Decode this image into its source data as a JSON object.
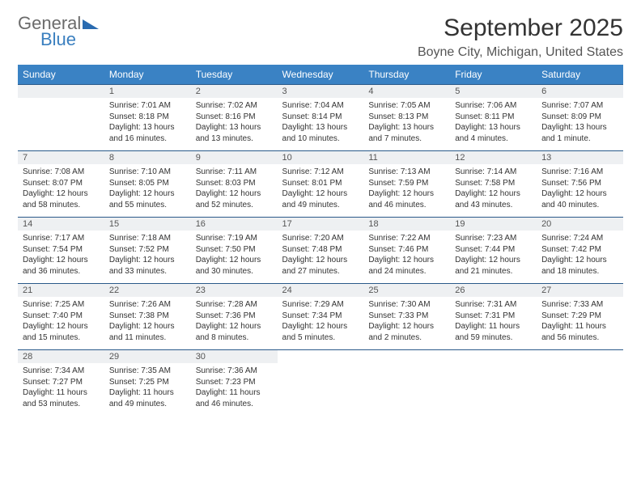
{
  "logo": {
    "text1": "General",
    "text2": "Blue"
  },
  "header": {
    "month_title": "September 2025",
    "location": "Boyne City, Michigan, United States"
  },
  "style": {
    "header_bg": "#3a82c4",
    "header_text": "#ffffff",
    "daynum_bg": "#eef0f2",
    "row_border": "#2a5a8a",
    "body_bg": "#ffffff",
    "body_text": "#333333",
    "title_fontsize": 30,
    "location_fontsize": 16,
    "cell_fontsize": 10,
    "daynum_fontsize": 11
  },
  "days_of_week": [
    "Sunday",
    "Monday",
    "Tuesday",
    "Wednesday",
    "Thursday",
    "Friday",
    "Saturday"
  ],
  "weeks": [
    [
      null,
      {
        "n": "1",
        "sr": "Sunrise: 7:01 AM",
        "ss": "Sunset: 8:18 PM",
        "dl": "Daylight: 13 hours and 16 minutes."
      },
      {
        "n": "2",
        "sr": "Sunrise: 7:02 AM",
        "ss": "Sunset: 8:16 PM",
        "dl": "Daylight: 13 hours and 13 minutes."
      },
      {
        "n": "3",
        "sr": "Sunrise: 7:04 AM",
        "ss": "Sunset: 8:14 PM",
        "dl": "Daylight: 13 hours and 10 minutes."
      },
      {
        "n": "4",
        "sr": "Sunrise: 7:05 AM",
        "ss": "Sunset: 8:13 PM",
        "dl": "Daylight: 13 hours and 7 minutes."
      },
      {
        "n": "5",
        "sr": "Sunrise: 7:06 AM",
        "ss": "Sunset: 8:11 PM",
        "dl": "Daylight: 13 hours and 4 minutes."
      },
      {
        "n": "6",
        "sr": "Sunrise: 7:07 AM",
        "ss": "Sunset: 8:09 PM",
        "dl": "Daylight: 13 hours and 1 minute."
      }
    ],
    [
      {
        "n": "7",
        "sr": "Sunrise: 7:08 AM",
        "ss": "Sunset: 8:07 PM",
        "dl": "Daylight: 12 hours and 58 minutes."
      },
      {
        "n": "8",
        "sr": "Sunrise: 7:10 AM",
        "ss": "Sunset: 8:05 PM",
        "dl": "Daylight: 12 hours and 55 minutes."
      },
      {
        "n": "9",
        "sr": "Sunrise: 7:11 AM",
        "ss": "Sunset: 8:03 PM",
        "dl": "Daylight: 12 hours and 52 minutes."
      },
      {
        "n": "10",
        "sr": "Sunrise: 7:12 AM",
        "ss": "Sunset: 8:01 PM",
        "dl": "Daylight: 12 hours and 49 minutes."
      },
      {
        "n": "11",
        "sr": "Sunrise: 7:13 AM",
        "ss": "Sunset: 7:59 PM",
        "dl": "Daylight: 12 hours and 46 minutes."
      },
      {
        "n": "12",
        "sr": "Sunrise: 7:14 AM",
        "ss": "Sunset: 7:58 PM",
        "dl": "Daylight: 12 hours and 43 minutes."
      },
      {
        "n": "13",
        "sr": "Sunrise: 7:16 AM",
        "ss": "Sunset: 7:56 PM",
        "dl": "Daylight: 12 hours and 40 minutes."
      }
    ],
    [
      {
        "n": "14",
        "sr": "Sunrise: 7:17 AM",
        "ss": "Sunset: 7:54 PM",
        "dl": "Daylight: 12 hours and 36 minutes."
      },
      {
        "n": "15",
        "sr": "Sunrise: 7:18 AM",
        "ss": "Sunset: 7:52 PM",
        "dl": "Daylight: 12 hours and 33 minutes."
      },
      {
        "n": "16",
        "sr": "Sunrise: 7:19 AM",
        "ss": "Sunset: 7:50 PM",
        "dl": "Daylight: 12 hours and 30 minutes."
      },
      {
        "n": "17",
        "sr": "Sunrise: 7:20 AM",
        "ss": "Sunset: 7:48 PM",
        "dl": "Daylight: 12 hours and 27 minutes."
      },
      {
        "n": "18",
        "sr": "Sunrise: 7:22 AM",
        "ss": "Sunset: 7:46 PM",
        "dl": "Daylight: 12 hours and 24 minutes."
      },
      {
        "n": "19",
        "sr": "Sunrise: 7:23 AM",
        "ss": "Sunset: 7:44 PM",
        "dl": "Daylight: 12 hours and 21 minutes."
      },
      {
        "n": "20",
        "sr": "Sunrise: 7:24 AM",
        "ss": "Sunset: 7:42 PM",
        "dl": "Daylight: 12 hours and 18 minutes."
      }
    ],
    [
      {
        "n": "21",
        "sr": "Sunrise: 7:25 AM",
        "ss": "Sunset: 7:40 PM",
        "dl": "Daylight: 12 hours and 15 minutes."
      },
      {
        "n": "22",
        "sr": "Sunrise: 7:26 AM",
        "ss": "Sunset: 7:38 PM",
        "dl": "Daylight: 12 hours and 11 minutes."
      },
      {
        "n": "23",
        "sr": "Sunrise: 7:28 AM",
        "ss": "Sunset: 7:36 PM",
        "dl": "Daylight: 12 hours and 8 minutes."
      },
      {
        "n": "24",
        "sr": "Sunrise: 7:29 AM",
        "ss": "Sunset: 7:34 PM",
        "dl": "Daylight: 12 hours and 5 minutes."
      },
      {
        "n": "25",
        "sr": "Sunrise: 7:30 AM",
        "ss": "Sunset: 7:33 PM",
        "dl": "Daylight: 12 hours and 2 minutes."
      },
      {
        "n": "26",
        "sr": "Sunrise: 7:31 AM",
        "ss": "Sunset: 7:31 PM",
        "dl": "Daylight: 11 hours and 59 minutes."
      },
      {
        "n": "27",
        "sr": "Sunrise: 7:33 AM",
        "ss": "Sunset: 7:29 PM",
        "dl": "Daylight: 11 hours and 56 minutes."
      }
    ],
    [
      {
        "n": "28",
        "sr": "Sunrise: 7:34 AM",
        "ss": "Sunset: 7:27 PM",
        "dl": "Daylight: 11 hours and 53 minutes."
      },
      {
        "n": "29",
        "sr": "Sunrise: 7:35 AM",
        "ss": "Sunset: 7:25 PM",
        "dl": "Daylight: 11 hours and 49 minutes."
      },
      {
        "n": "30",
        "sr": "Sunrise: 7:36 AM",
        "ss": "Sunset: 7:23 PM",
        "dl": "Daylight: 11 hours and 46 minutes."
      },
      null,
      null,
      null,
      null
    ]
  ]
}
